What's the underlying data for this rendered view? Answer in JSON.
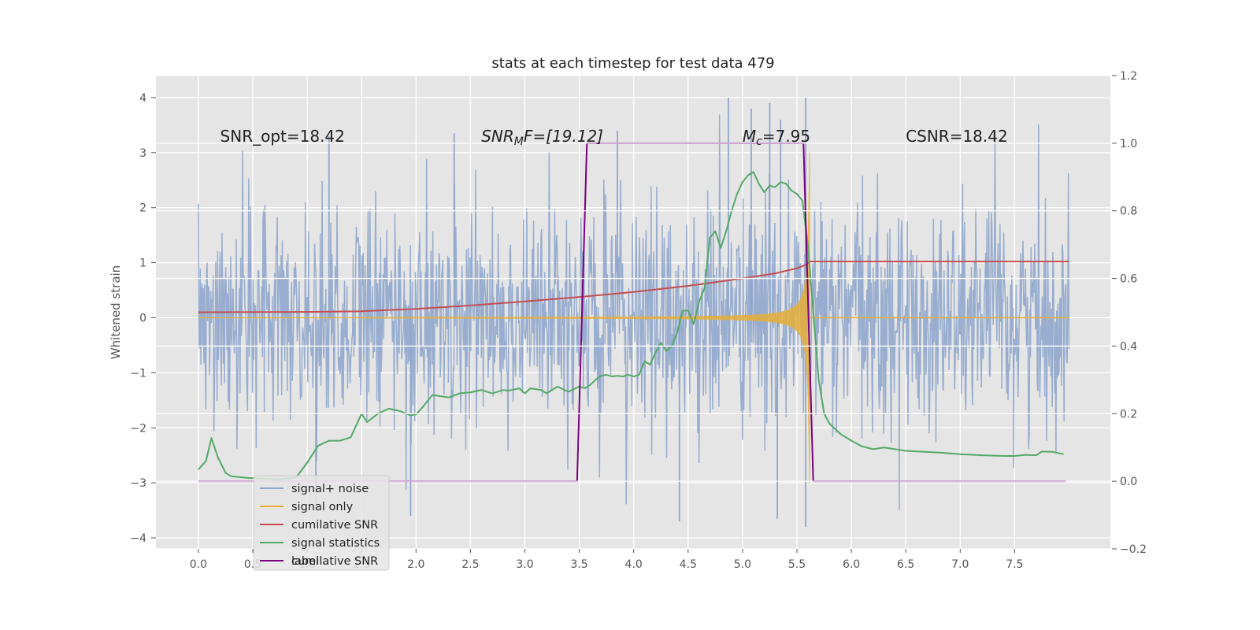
{
  "chart_data": {
    "type": "line",
    "title": "stats at each timestep for test data 479",
    "xlabel": "",
    "ylabel": "Whitened strain",
    "xlim": [
      -0.39,
      8.38
    ],
    "ylim": [
      -4.2,
      4.4
    ],
    "y2lim": [
      -0.2,
      1.2
    ],
    "x_ticks": [
      0.0,
      0.5,
      1.0,
      1.5,
      2.0,
      2.5,
      3.0,
      3.5,
      4.0,
      4.5,
      5.0,
      5.5,
      6.0,
      6.5,
      7.0,
      7.5
    ],
    "x_tick_labels": [
      "0.0",
      "0.5",
      "1.0",
      "1.5",
      "2.0",
      "2.5",
      "3.0",
      "3.5",
      "4.0",
      "4.5",
      "5.0",
      "5.5",
      "6.0",
      "6.5",
      "7.0",
      "7.5"
    ],
    "y_ticks": [
      -4,
      -3,
      -2,
      -1,
      0,
      1,
      2,
      3,
      4
    ],
    "y_tick_labels": [
      "−4",
      "−3",
      "−2",
      "−1",
      "0",
      "1",
      "2",
      "3",
      "4"
    ],
    "y2_ticks": [
      -0.2,
      0.0,
      0.2,
      0.4,
      0.6,
      0.8,
      1.0,
      1.2
    ],
    "y2_tick_labels": [
      "−0.2",
      "0.0",
      "0.2",
      "0.4",
      "0.6",
      "0.8",
      "1.0",
      "1.2"
    ],
    "grid": true,
    "legend_position": "lower-left",
    "annotations": [
      {
        "id": "snr-opt",
        "x": 0.2,
        "y": 3.2,
        "text": "SNR_opt=18.42"
      },
      {
        "id": "snr-mf",
        "x": 2.6,
        "y": 3.2,
        "prefix": "SNR",
        "sub": "M",
        "suffix": "F=[19.12]"
      },
      {
        "id": "mc",
        "x": 5.0,
        "y": 3.2,
        "prefix": "M",
        "sub": "c",
        "suffix": "=7.95"
      },
      {
        "id": "csnr",
        "x": 6.5,
        "y": 3.2,
        "text": "CSNR=18.42"
      }
    ],
    "series": [
      {
        "name": "signal+ noise",
        "axis": "left",
        "color": "#8fa6cc",
        "style": "noise",
        "x_start": 0.0,
        "x_end": 8.0,
        "samples": 1400,
        "sigma": 1.05,
        "range": [
          -3.8,
          4.0
        ],
        "spikes": [
          [
            4.87,
            4.0
          ],
          [
            5.58,
            4.0
          ],
          [
            5.25,
            3.9
          ],
          [
            5.08,
            3.8
          ],
          [
            5.35,
            3.6
          ],
          [
            3.85,
            3.4
          ],
          [
            1.08,
            -3.5
          ],
          [
            1.95,
            -3.6
          ],
          [
            4.42,
            -3.7
          ],
          [
            5.58,
            -3.8
          ],
          [
            5.32,
            -3.65
          ],
          [
            1.2,
            3.3
          ],
          [
            2.35,
            3.35
          ]
        ]
      },
      {
        "name": "signal only",
        "axis": "left",
        "color": "#e5ae38",
        "style": "chirp",
        "x_start": 1.5,
        "x_end": 5.6,
        "peak_amplitude": 3.0
      },
      {
        "name": "cumilative SNR",
        "axis": "right",
        "color": "#c44e52",
        "x": [
          0.0,
          1.0,
          1.5,
          2.0,
          2.5,
          3.0,
          3.5,
          4.0,
          4.5,
          5.0,
          5.3,
          5.5,
          5.58,
          5.62,
          8.0
        ],
        "y": [
          0.5,
          0.501,
          0.503,
          0.51,
          0.52,
          0.532,
          0.545,
          0.56,
          0.578,
          0.6,
          0.615,
          0.63,
          0.64,
          0.65,
          0.65
        ]
      },
      {
        "name": "signal statistics",
        "axis": "right",
        "color": "#55a868",
        "x": [
          0.0,
          0.07,
          0.12,
          0.18,
          0.25,
          0.3,
          0.45,
          0.6,
          0.75,
          0.9,
          1.0,
          1.1,
          1.2,
          1.3,
          1.4,
          1.5,
          1.55,
          1.65,
          1.75,
          1.85,
          1.95,
          2.0,
          2.05,
          2.15,
          2.3,
          2.4,
          2.5,
          2.6,
          2.7,
          2.8,
          2.85,
          2.95,
          3.0,
          3.05,
          3.15,
          3.2,
          3.3,
          3.4,
          3.5,
          3.55,
          3.6,
          3.65,
          3.7,
          3.75,
          3.8,
          3.85,
          3.9,
          3.95,
          4.0,
          4.05,
          4.1,
          4.15,
          4.2,
          4.25,
          4.3,
          4.35,
          4.4,
          4.45,
          4.5,
          4.55,
          4.6,
          4.65,
          4.7,
          4.75,
          4.8,
          4.85,
          4.9,
          4.95,
          5.0,
          5.05,
          5.1,
          5.15,
          5.2,
          5.25,
          5.3,
          5.35,
          5.4,
          5.45,
          5.5,
          5.55,
          5.6,
          5.65,
          5.7,
          5.75,
          5.8,
          5.9,
          6.0,
          6.1,
          6.2,
          6.3,
          6.5,
          6.8,
          7.0,
          7.2,
          7.4,
          7.5,
          7.6,
          7.7,
          7.75,
          7.85,
          7.95
        ],
        "y": [
          0.035,
          0.06,
          0.128,
          0.07,
          0.025,
          0.015,
          0.01,
          0.008,
          0.005,
          0.012,
          0.055,
          0.105,
          0.12,
          0.12,
          0.13,
          0.2,
          0.175,
          0.2,
          0.215,
          0.208,
          0.195,
          0.198,
          0.215,
          0.255,
          0.248,
          0.26,
          0.263,
          0.27,
          0.26,
          0.27,
          0.268,
          0.275,
          0.26,
          0.275,
          0.27,
          0.26,
          0.28,
          0.265,
          0.28,
          0.275,
          0.285,
          0.3,
          0.312,
          0.315,
          0.31,
          0.312,
          0.31,
          0.315,
          0.31,
          0.315,
          0.355,
          0.345,
          0.38,
          0.41,
          0.385,
          0.4,
          0.44,
          0.505,
          0.505,
          0.465,
          0.53,
          0.57,
          0.72,
          0.74,
          0.69,
          0.74,
          0.8,
          0.85,
          0.885,
          0.905,
          0.915,
          0.88,
          0.855,
          0.875,
          0.87,
          0.885,
          0.88,
          0.86,
          0.85,
          0.83,
          0.7,
          0.5,
          0.3,
          0.2,
          0.17,
          0.14,
          0.12,
          0.103,
          0.095,
          0.1,
          0.09,
          0.085,
          0.08,
          0.077,
          0.075,
          0.075,
          0.078,
          0.077,
          0.088,
          0.087,
          0.08
        ]
      },
      {
        "name": "label",
        "axis": "right",
        "color": "#7b0080",
        "x": [
          0.0,
          3.48,
          3.57,
          5.56,
          5.65,
          7.97
        ],
        "y": [
          0.0,
          0.0,
          1.0,
          1.0,
          0.0,
          0.0
        ]
      }
    ],
    "legend_entries": [
      {
        "label": "signal+ noise",
        "color": "#8fa6cc"
      },
      {
        "label": "signal only",
        "color": "#e5ae38"
      },
      {
        "label": "cumilative SNR",
        "color": "#c44e52"
      },
      {
        "label": "signal statistics",
        "color": "#55a868"
      },
      {
        "label": "label",
        "color": "#7b0080"
      }
    ],
    "legend_ghost_text": "cumilative SNR"
  }
}
